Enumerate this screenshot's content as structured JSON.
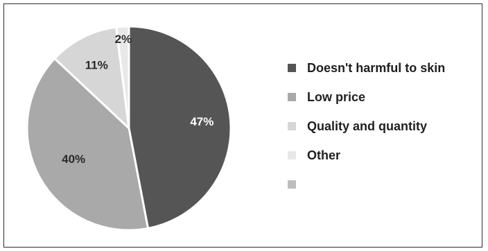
{
  "chart_data": {
    "type": "pie",
    "slices": [
      {
        "label": "Doesn't harmful to skin",
        "value": 47,
        "value_label": "47%",
        "color": "#555555",
        "label_color": "#ffffff"
      },
      {
        "label": "Low price",
        "value": 40,
        "value_label": "40%",
        "color": "#a9a9a9",
        "label_color": "#2a2a2a"
      },
      {
        "label": "Quality and quantity",
        "value": 11,
        "value_label": "11%",
        "color": "#d6d6d6",
        "label_color": "#2a2a2a"
      },
      {
        "label": "Other",
        "value": 2,
        "value_label": "2%",
        "color": "#e8e8e8",
        "label_color": "#2a2a2a"
      }
    ],
    "extra_legend_swatch_color": "#bdbdbd",
    "legend_placement": "right"
  }
}
